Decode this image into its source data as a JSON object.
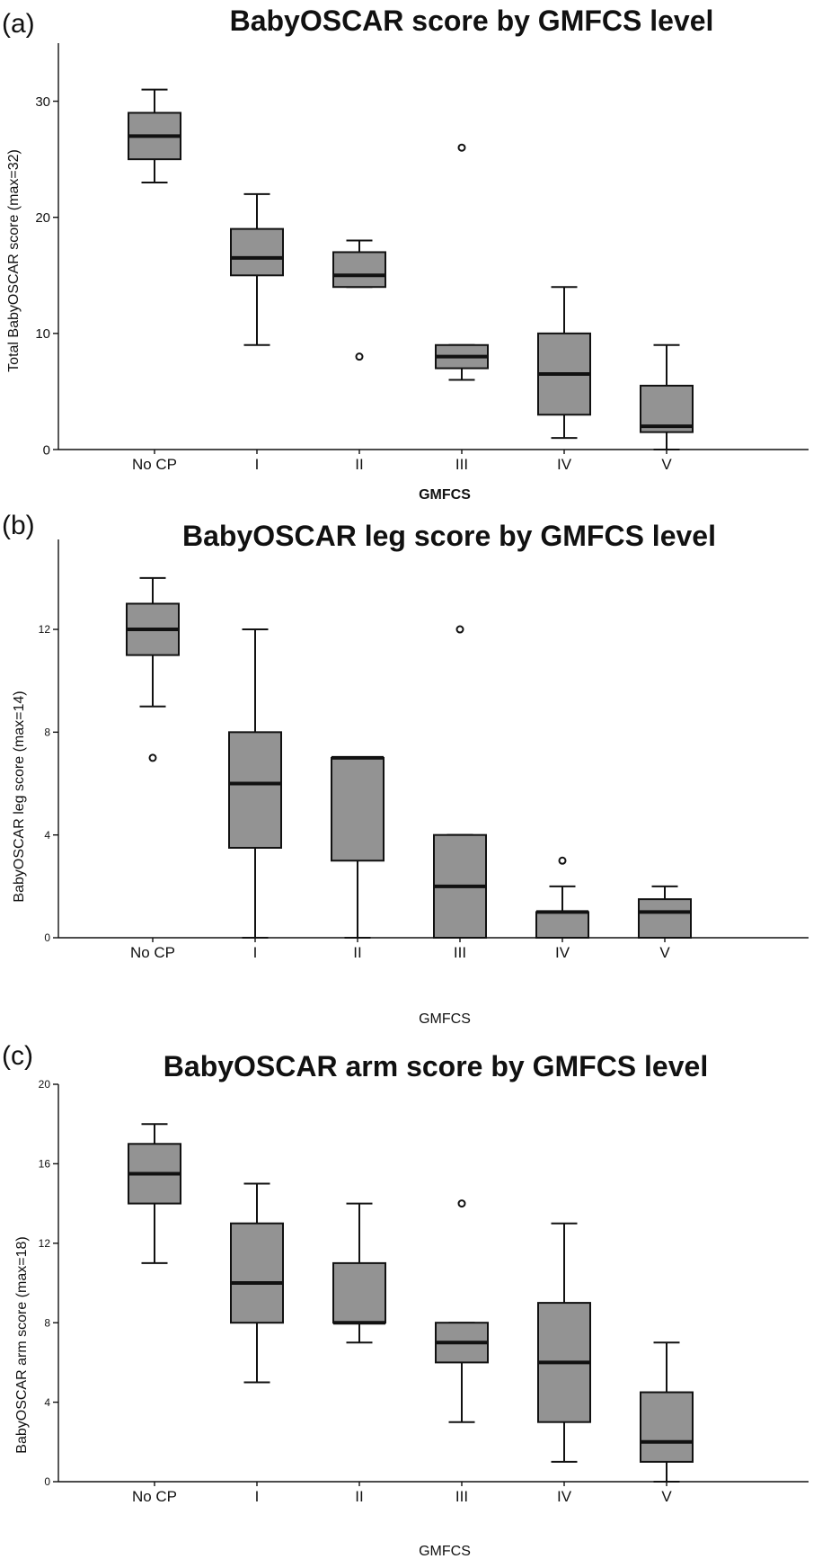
{
  "chart_data": [
    {
      "type": "box",
      "panel_label": "(a)",
      "title": "BabyOSCAR score by GMFCS level",
      "xlabel": "GMFCS",
      "ylabel": "Total BabyOSCAR score (max=32)",
      "ylim": [
        0,
        35
      ],
      "yticks": [
        0,
        10,
        20,
        30
      ],
      "categories": [
        "No CP",
        "I",
        "II",
        "III",
        "IV",
        "V"
      ],
      "boxes": [
        {
          "whisker_low": 23,
          "q1": 25,
          "median": 27,
          "q3": 29,
          "whisker_high": 31,
          "outliers": []
        },
        {
          "whisker_low": 9,
          "q1": 15,
          "median": 16.5,
          "q3": 19,
          "whisker_high": 22,
          "outliers": []
        },
        {
          "whisker_low": 14,
          "q1": 14,
          "median": 15,
          "q3": 17,
          "whisker_high": 18,
          "outliers": [
            8
          ]
        },
        {
          "whisker_low": 6,
          "q1": 7,
          "median": 8,
          "q3": 9,
          "whisker_high": 9,
          "outliers": [
            26
          ]
        },
        {
          "whisker_low": 1,
          "q1": 3,
          "median": 6.5,
          "q3": 10,
          "whisker_high": 14,
          "outliers": []
        },
        {
          "whisker_low": 0,
          "q1": 1.5,
          "median": 2,
          "q3": 5.5,
          "whisker_high": 9,
          "outliers": []
        }
      ]
    },
    {
      "type": "box",
      "panel_label": "(b)",
      "title": "BabyOSCAR leg score by GMFCS level",
      "xlabel": "GMFCS",
      "ylabel": "BabyOSCAR leg score (max=14)",
      "ylim": [
        0,
        15.5
      ],
      "yticks": [
        0,
        4,
        8,
        12
      ],
      "categories": [
        "No CP",
        "I",
        "II",
        "III",
        "IV",
        "V"
      ],
      "boxes": [
        {
          "whisker_low": 9,
          "q1": 11,
          "median": 12,
          "q3": 13,
          "whisker_high": 14,
          "outliers": [
            7
          ]
        },
        {
          "whisker_low": 0,
          "q1": 3.5,
          "median": 6,
          "q3": 8,
          "whisker_high": 12,
          "outliers": []
        },
        {
          "whisker_low": 0,
          "q1": 3,
          "median": 7,
          "q3": 7,
          "whisker_high": 7,
          "outliers": []
        },
        {
          "whisker_low": 0,
          "q1": 0,
          "median": 2,
          "q3": 4,
          "whisker_high": 4,
          "outliers": [
            12
          ]
        },
        {
          "whisker_low": 0,
          "q1": 0,
          "median": 1,
          "q3": 1,
          "whisker_high": 2,
          "outliers": [
            3
          ]
        },
        {
          "whisker_low": 0,
          "q1": 0,
          "median": 1,
          "q3": 1.5,
          "whisker_high": 2,
          "outliers": []
        }
      ]
    },
    {
      "type": "box",
      "panel_label": "(c)",
      "title": "BabyOSCAR arm score by GMFCS level",
      "xlabel": "GMFCS",
      "ylabel": "BabyOSCAR arm score (max=18)",
      "ylim": [
        0,
        20
      ],
      "yticks": [
        0,
        4,
        8,
        12,
        16,
        20
      ],
      "categories": [
        "No CP",
        "I",
        "II",
        "III",
        "IV",
        "V"
      ],
      "boxes": [
        {
          "whisker_low": 11,
          "q1": 14,
          "median": 15.5,
          "q3": 17,
          "whisker_high": 18,
          "outliers": []
        },
        {
          "whisker_low": 5,
          "q1": 8,
          "median": 10,
          "q3": 13,
          "whisker_high": 15,
          "outliers": []
        },
        {
          "whisker_low": 7,
          "q1": 8,
          "median": 8,
          "q3": 11,
          "whisker_high": 14,
          "outliers": []
        },
        {
          "whisker_low": 3,
          "q1": 6,
          "median": 7,
          "q3": 8,
          "whisker_high": 8,
          "outliers": [
            14
          ]
        },
        {
          "whisker_low": 1,
          "q1": 3,
          "median": 6,
          "q3": 9,
          "whisker_high": 13,
          "outliers": []
        },
        {
          "whisker_low": 0,
          "q1": 1,
          "median": 2,
          "q3": 4.5,
          "whisker_high": 7,
          "outliers": []
        }
      ]
    }
  ]
}
